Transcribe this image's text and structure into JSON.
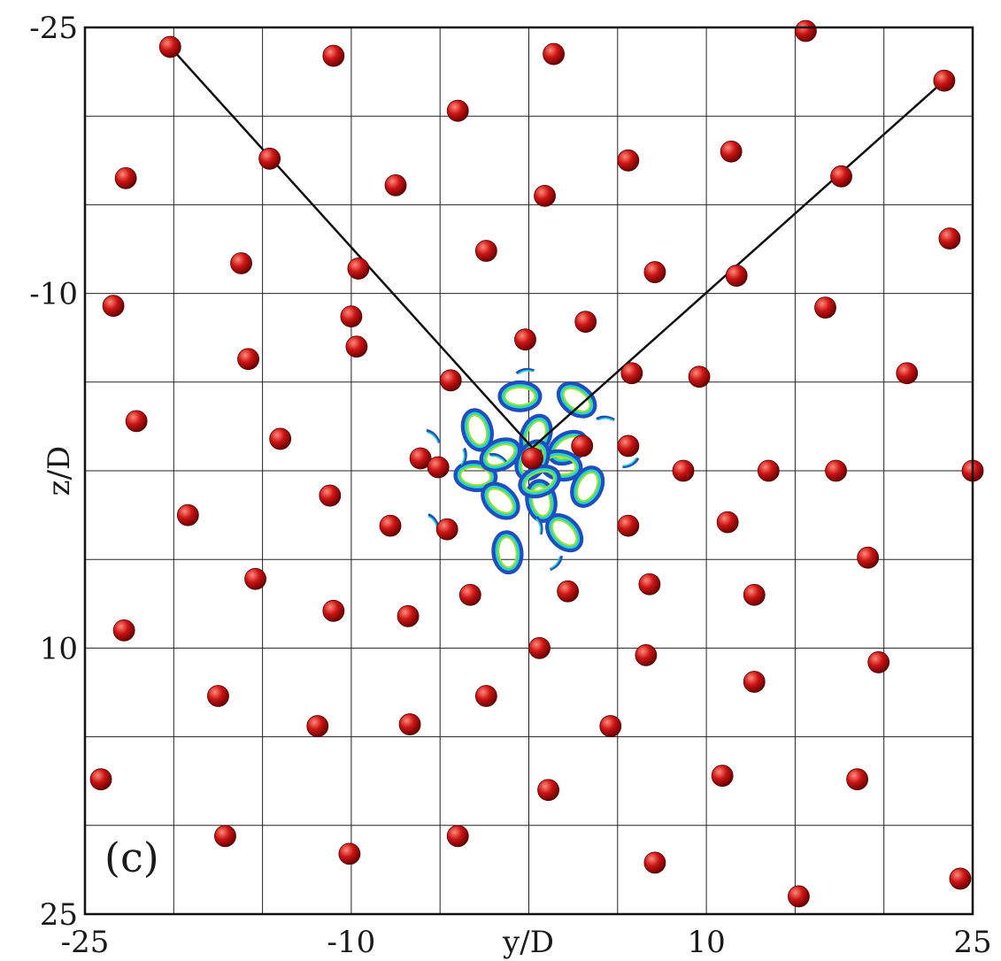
{
  "chart_data": {
    "type": "scatter",
    "panel_label": "(c)",
    "xlabel": "y/D",
    "ylabel": "z/D",
    "xlim": [
      -25,
      25
    ],
    "ylim": [
      -25,
      25
    ],
    "y_axis_inverted": true,
    "grid": true,
    "grid_step": 5,
    "x_ticks": [
      "-25",
      "-10",
      "10",
      "25"
    ],
    "x_tick_values": [
      -25,
      -10,
      10,
      25
    ],
    "y_ticks": [
      "-25",
      "-10",
      "10",
      "25"
    ],
    "y_tick_values": [
      -25,
      -10,
      10,
      25
    ],
    "colors": {
      "particle": "#cc1414",
      "particle_highlight": "#ff8a7a",
      "particle_shadow": "#5a0000",
      "line": "#111111",
      "grid": "#222222",
      "vortex_outer": "#1f4fbf",
      "vortex_mid": "#2bd4c8",
      "vortex_inner": "#9be22d"
    },
    "v_lines": [
      {
        "x": [
          -20.2,
          0.2,
          23.4
        ],
        "y": [
          -23.9,
          -1.3,
          -22.0
        ]
      }
    ],
    "particles": {
      "x": [
        -20.2,
        -11.0,
        1.4,
        15.6,
        23.4,
        -4.0,
        -22.7,
        -14.6,
        -7.5,
        0.9,
        5.6,
        11.4,
        17.6,
        -16.2,
        -9.6,
        -2.4,
        7.1,
        11.7,
        23.7,
        -23.4,
        -10.0,
        3.2,
        16.7,
        -0.2,
        -15.8,
        -9.7,
        -4.4,
        5.8,
        9.6,
        21.3,
        -22.1,
        -14.0,
        -6.1,
        -5.1,
        3.0,
        13.5,
        0.2,
        5.6,
        8.7,
        17.3,
        25.0,
        -19.2,
        -11.2,
        -7.8,
        -4.6,
        5.6,
        11.2,
        -15.4,
        -11.0,
        -6.8,
        -3.3,
        2.2,
        6.8,
        12.7,
        19.1,
        -22.8,
        0.6,
        6.6,
        12.7,
        19.7,
        -17.5,
        -11.9,
        -6.7,
        -2.4,
        4.6,
        -24.1,
        1.1,
        10.9,
        18.5,
        -17.1,
        -10.1,
        -4.0,
        7.1,
        15.2,
        24.3
      ],
      "y": [
        -23.9,
        -23.4,
        -23.5,
        -24.8,
        -22.0,
        -20.3,
        -16.5,
        -17.6,
        -16.1,
        -15.5,
        -17.5,
        -18.0,
        -16.6,
        -11.7,
        -11.4,
        -12.4,
        -11.2,
        -11.0,
        -13.1,
        -9.3,
        -8.7,
        -8.4,
        -9.2,
        -7.4,
        -6.3,
        -7.0,
        -5.1,
        -5.5,
        -5.3,
        -5.5,
        -2.8,
        -1.8,
        -0.7,
        -0.2,
        -1.4,
        0.0,
        -0.7,
        -1.4,
        0.0,
        0.0,
        0.0,
        2.5,
        1.4,
        3.1,
        3.3,
        3.1,
        2.9,
        6.1,
        7.9,
        8.2,
        7.0,
        6.8,
        6.4,
        7.0,
        4.9,
        9.0,
        10.0,
        10.4,
        11.9,
        10.8,
        12.7,
        14.4,
        14.3,
        12.7,
        14.4,
        17.4,
        18.0,
        17.2,
        17.4,
        20.6,
        21.6,
        20.6,
        22.1,
        24.0,
        23.0
      ]
    },
    "vortex_rings": {
      "cx": [
        -0.5,
        2.7,
        -2.9,
        0.4,
        2.2,
        -3.0,
        -1.6,
        0.7,
        3.3,
        -1.6,
        1.8,
        2.0,
        -1.2,
        0.2,
        0.6
      ],
      "cy": [
        -4.2,
        -4.0,
        -2.3,
        -2.0,
        -1.3,
        0.3,
        1.7,
        1.7,
        0.9,
        -0.9,
        -0.3,
        3.5,
        4.6,
        -0.6,
        0.6
      ]
    },
    "vortex_fragments": {
      "cx": [
        -0.1,
        -5.4,
        -3.8,
        5.6,
        -1.7,
        0.5,
        1.4,
        4.4,
        -5.4
      ],
      "cy": [
        -5.5,
        -1.8,
        -0.7,
        -0.5,
        -0.6,
        3.2,
        5.2,
        -2.8,
        3.0
      ]
    }
  }
}
